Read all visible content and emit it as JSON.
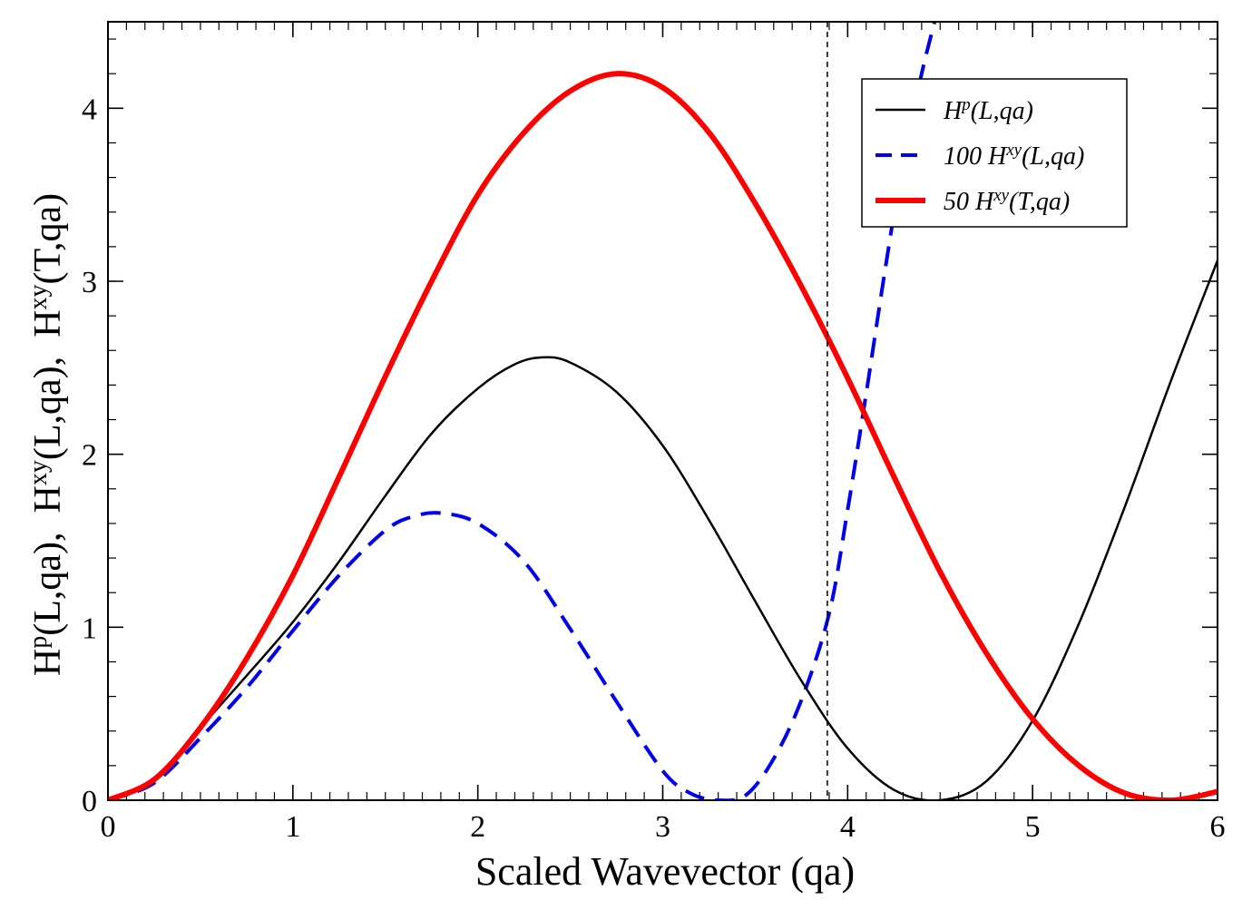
{
  "chart_data": {
    "type": "line",
    "title": "",
    "xlabel": "Scaled Wavevector  (qa)",
    "ylabel": {
      "part1_base": "H",
      "part1_sup": "p",
      "part1_rest": "(L,qa),  ",
      "part2_base": "H",
      "part2_sup": "xy",
      "part2_rest": "(L,qa),  ",
      "part3_base": "H",
      "part3_sup": "xy",
      "part3_rest": "(T,qa)"
    },
    "xlim": [
      0,
      6
    ],
    "ylim": [
      0,
      4.5
    ],
    "x_ticks": [
      "0",
      "1",
      "2",
      "3",
      "4",
      "5",
      "6"
    ],
    "y_ticks": [
      "0",
      "1",
      "2",
      "3",
      "4"
    ],
    "reference_line": {
      "x": 3.89,
      "style": "dashed",
      "color": "#000000"
    },
    "legend_position": "top-right",
    "series": [
      {
        "name": "H^p(L,qa)",
        "legend": {
          "prefix": "",
          "base": "H",
          "sup": "p",
          "rest": "(L,qa)"
        },
        "color": "#000000",
        "style": "solid",
        "x": [
          0,
          0.25,
          0.5,
          0.75,
          1.0,
          1.25,
          1.5,
          1.75,
          2.0,
          2.2,
          2.35,
          2.5,
          2.75,
          3.0,
          3.25,
          3.5,
          3.75,
          4.0,
          4.25,
          4.5,
          4.75,
          5.0,
          5.25,
          5.5,
          5.75,
          6.0
        ],
        "y": [
          0,
          0.12,
          0.42,
          0.72,
          1.03,
          1.38,
          1.76,
          2.12,
          2.38,
          2.52,
          2.56,
          2.53,
          2.36,
          2.05,
          1.62,
          1.15,
          0.69,
          0.3,
          0.06,
          0.0,
          0.11,
          0.46,
          1.02,
          1.7,
          2.43,
          3.12
        ]
      },
      {
        "name": "100 H^xy(L,qa)",
        "legend": {
          "prefix": "100 ",
          "base": "H",
          "sup": "xy",
          "rest": "(L,qa)"
        },
        "color": "#0000ee",
        "style": "dashed",
        "x": [
          0,
          0.25,
          0.5,
          0.75,
          1.0,
          1.25,
          1.5,
          1.65,
          1.8,
          2.0,
          2.25,
          2.5,
          2.75,
          3.0,
          3.15,
          3.3,
          3.45,
          3.6,
          3.75,
          3.9,
          4.0,
          4.1,
          4.2,
          4.3,
          4.4,
          4.47
        ],
        "y": [
          0,
          0.1,
          0.36,
          0.65,
          0.98,
          1.3,
          1.56,
          1.64,
          1.66,
          1.6,
          1.38,
          0.99,
          0.57,
          0.17,
          0.04,
          0.0,
          0.03,
          0.24,
          0.58,
          1.08,
          1.68,
          2.35,
          3.05,
          3.7,
          4.2,
          4.5
        ]
      },
      {
        "name": "50 H^xy(T,qa)",
        "legend": {
          "prefix": "50 ",
          "base": "H",
          "sup": "xy",
          "rest": "(T,qa)"
        },
        "color": "#ff0000",
        "style": "solid",
        "x": [
          0,
          0.25,
          0.5,
          0.75,
          1.0,
          1.25,
          1.5,
          1.75,
          2.0,
          2.25,
          2.5,
          2.75,
          3.0,
          3.25,
          3.5,
          3.75,
          4.0,
          4.25,
          4.5,
          4.75,
          5.0,
          5.25,
          5.5,
          5.75,
          6.0
        ],
        "y": [
          0,
          0.12,
          0.42,
          0.82,
          1.3,
          1.87,
          2.45,
          3.0,
          3.5,
          3.86,
          4.1,
          4.2,
          4.12,
          3.86,
          3.45,
          2.97,
          2.44,
          1.87,
          1.32,
          0.85,
          0.47,
          0.2,
          0.04,
          0.0,
          0.05
        ]
      }
    ]
  }
}
